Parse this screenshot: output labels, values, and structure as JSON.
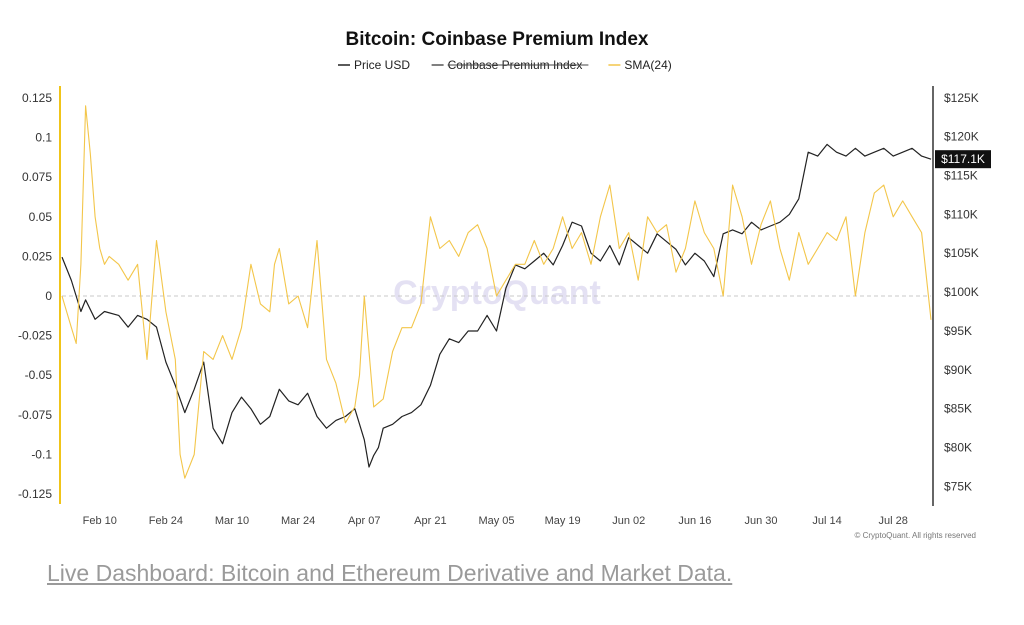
{
  "chart_data": {
    "type": "line",
    "title": "Bitcoin: Coinbase Premium Index",
    "legend": [
      {
        "name": "Price USD",
        "color": "#222222",
        "struck": false
      },
      {
        "name": "Coinbase Premium Index",
        "color": "#555555",
        "struck": true
      },
      {
        "name": "SMA(24)",
        "color": "#f3c64a",
        "struck": false
      }
    ],
    "left_axis": {
      "range": [
        -0.13,
        0.13
      ],
      "ticks": [
        0.125,
        0.1,
        0.075,
        0.05,
        0.025,
        0,
        -0.025,
        -0.05,
        -0.075,
        -0.1,
        -0.125
      ],
      "tick_labels": [
        "0.125",
        "0.1",
        "0.075",
        "0.05",
        "0.025",
        "0",
        "-0.025",
        "-0.05",
        "-0.075",
        "-0.1",
        "-0.125"
      ]
    },
    "right_axis": {
      "range": [
        73000,
        126000
      ],
      "ticks": [
        125000,
        120000,
        115000,
        110000,
        105000,
        100000,
        95000,
        90000,
        85000,
        80000,
        75000
      ],
      "tick_labels": [
        "$125K",
        "$120K",
        "$115K",
        "$110K",
        "$105K",
        "$100K",
        "$95K",
        "$90K",
        "$85K",
        "$80K",
        "$75K"
      ]
    },
    "x_axis": {
      "range": [
        0,
        184
      ],
      "tick_positions": [
        8,
        22,
        36,
        50,
        64,
        78,
        92,
        106,
        120,
        134,
        148,
        162,
        176
      ],
      "tick_labels": [
        "Feb 10",
        "Feb 24",
        "Mar 10",
        "Mar 24",
        "Apr 07",
        "Apr 21",
        "May 05",
        "May 19",
        "Jun 02",
        "Jun 16",
        "Jun 30",
        "Jul 14",
        "Jul 28"
      ]
    },
    "current_price_label": "$117.1K",
    "current_price": 117100,
    "series": [
      {
        "name": "Price USD",
        "axis": "right",
        "x": [
          0,
          2,
          4,
          5,
          7,
          9,
          12,
          14,
          16,
          18,
          20,
          22,
          24,
          26,
          28,
          30,
          32,
          34,
          36,
          38,
          40,
          42,
          44,
          46,
          48,
          50,
          52,
          54,
          56,
          58,
          60,
          62,
          64,
          65,
          66,
          67,
          68,
          70,
          72,
          74,
          76,
          78,
          80,
          82,
          84,
          86,
          88,
          90,
          92,
          94,
          96,
          98,
          100,
          102,
          104,
          106,
          108,
          110,
          112,
          114,
          116,
          118,
          120,
          122,
          124,
          126,
          128,
          130,
          132,
          134,
          136,
          138,
          140,
          142,
          144,
          146,
          148,
          150,
          152,
          154,
          156,
          158,
          160,
          162,
          164,
          166,
          168,
          170,
          172,
          174,
          176,
          178,
          180,
          182,
          184
        ],
        "values": [
          104500,
          101500,
          97500,
          99000,
          96500,
          97500,
          97000,
          95500,
          97000,
          96500,
          95500,
          91000,
          88000,
          84500,
          87500,
          91000,
          82500,
          80500,
          84500,
          86500,
          85000,
          83000,
          84000,
          87500,
          86000,
          85500,
          87000,
          84000,
          82500,
          83500,
          84000,
          85000,
          81000,
          77500,
          79000,
          80000,
          82500,
          83000,
          84000,
          84500,
          85500,
          88000,
          92000,
          94000,
          93500,
          95000,
          95000,
          97000,
          95000,
          100500,
          103500,
          103000,
          104000,
          105000,
          103500,
          106000,
          109000,
          108500,
          105000,
          104000,
          106000,
          103500,
          107000,
          106000,
          105000,
          107500,
          106500,
          105500,
          103500,
          105000,
          104000,
          102000,
          107500,
          108000,
          107500,
          109000,
          108000,
          108500,
          109000,
          110000,
          112000,
          118000,
          117500,
          119000,
          118000,
          117500,
          118500,
          117500,
          118000,
          118500,
          117500,
          118000,
          118500,
          117500,
          117100
        ]
      },
      {
        "name": "SMA(24)",
        "axis": "left",
        "x": [
          0,
          2,
          3,
          4,
          5,
          6,
          7,
          8,
          9,
          10,
          12,
          14,
          16,
          18,
          20,
          22,
          24,
          25,
          26,
          28,
          30,
          32,
          34,
          36,
          38,
          40,
          42,
          44,
          45,
          46,
          48,
          50,
          52,
          54,
          56,
          58,
          60,
          62,
          63,
          64,
          66,
          68,
          70,
          72,
          74,
          76,
          78,
          80,
          82,
          84,
          86,
          88,
          90,
          92,
          94,
          96,
          98,
          100,
          102,
          104,
          106,
          108,
          110,
          112,
          114,
          116,
          118,
          120,
          122,
          124,
          126,
          128,
          130,
          132,
          134,
          136,
          138,
          140,
          142,
          144,
          146,
          148,
          150,
          152,
          154,
          156,
          158,
          160,
          162,
          164,
          166,
          168,
          170,
          172,
          174,
          176,
          178,
          180,
          182,
          184
        ],
        "values": [
          0.0,
          -0.02,
          -0.03,
          0.02,
          0.12,
          0.09,
          0.05,
          0.03,
          0.02,
          0.025,
          0.02,
          0.01,
          0.02,
          -0.04,
          0.035,
          -0.01,
          -0.04,
          -0.1,
          -0.115,
          -0.1,
          -0.035,
          -0.04,
          -0.025,
          -0.04,
          -0.02,
          0.02,
          -0.005,
          -0.01,
          0.02,
          0.03,
          -0.005,
          0.0,
          -0.02,
          0.035,
          -0.04,
          -0.055,
          -0.08,
          -0.07,
          -0.05,
          0.0,
          -0.07,
          -0.065,
          -0.035,
          -0.02,
          -0.02,
          -0.005,
          0.05,
          0.03,
          0.035,
          0.025,
          0.04,
          0.045,
          0.03,
          0.0,
          0.01,
          0.02,
          0.02,
          0.035,
          0.02,
          0.03,
          0.05,
          0.03,
          0.04,
          0.02,
          0.05,
          0.07,
          0.03,
          0.04,
          0.01,
          0.05,
          0.04,
          0.045,
          0.015,
          0.03,
          0.06,
          0.04,
          0.03,
          0.0,
          0.07,
          0.05,
          0.02,
          0.045,
          0.06,
          0.03,
          0.01,
          0.04,
          0.02,
          0.03,
          0.04,
          0.035,
          0.05,
          0.0,
          0.04,
          0.065,
          0.07,
          0.05,
          0.06,
          0.05,
          0.04,
          -0.015
        ]
      }
    ],
    "zero_line": 0,
    "watermark": "CryptoQuant",
    "credit": "© CryptoQuant. All rights reserved"
  },
  "footer": {
    "link_text": "Live Dashboard: Bitcoin and Ethereum Derivative and Market Data."
  },
  "colors": {
    "price": "#222222",
    "sma": "#f3c64a",
    "left_axis_line": "#f0c419",
    "right_axis_line": "#333333",
    "zero_line": "#c8c8c8"
  }
}
